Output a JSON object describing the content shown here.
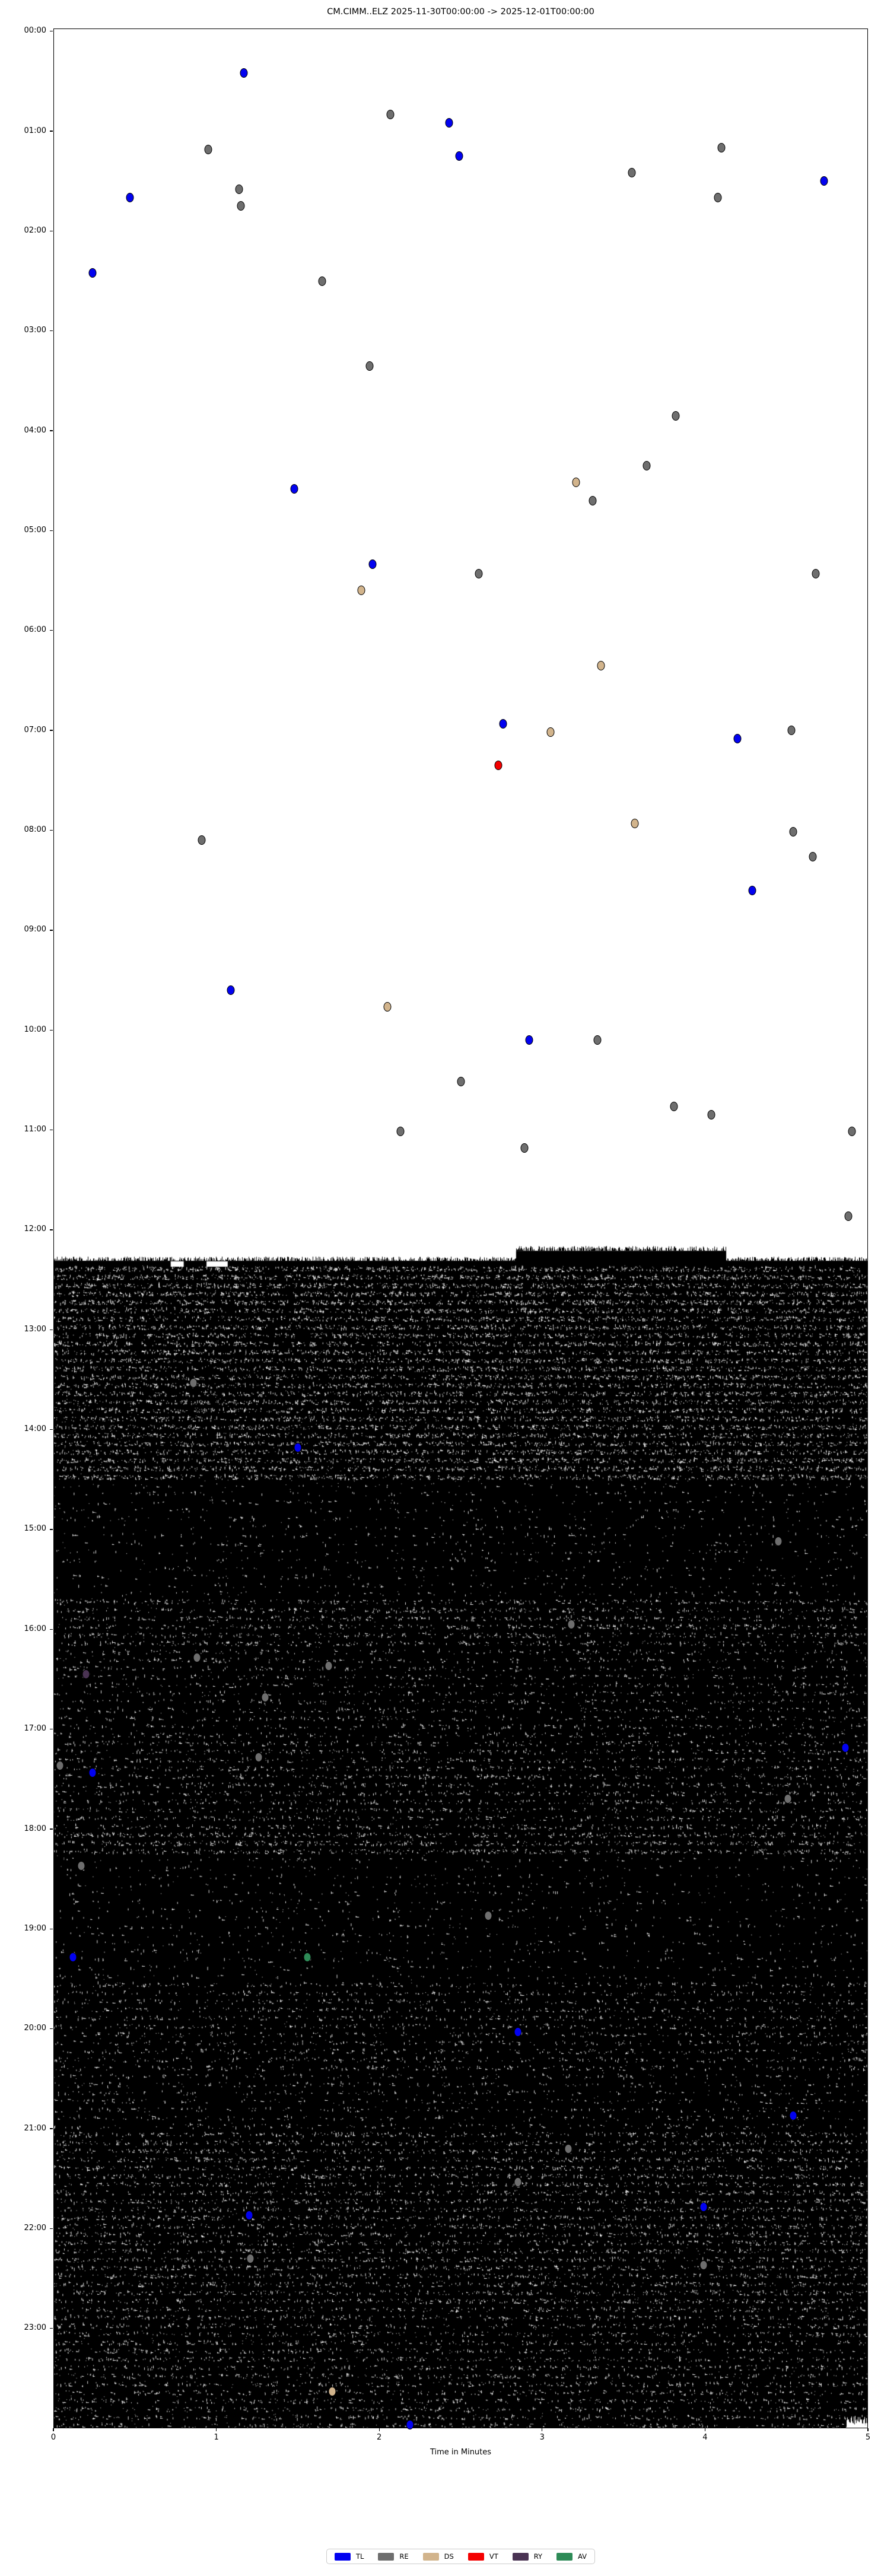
{
  "title": "CM.CIMM..ELZ  2025-11-30T00:00:00 -> 2025-12-01T00:00:00",
  "x_axis": {
    "label": "Time in Minutes",
    "ticks": [
      "0",
      "1",
      "2",
      "3",
      "4",
      "5"
    ],
    "range": [
      0,
      5
    ]
  },
  "y_axis": {
    "ticks": [
      "00:00",
      "01:00",
      "02:00",
      "03:00",
      "04:00",
      "05:00",
      "06:00",
      "07:00",
      "08:00",
      "09:00",
      "10:00",
      "11:00",
      "12:00",
      "13:00",
      "14:00",
      "15:00",
      "16:00",
      "17:00",
      "18:00",
      "19:00",
      "20:00",
      "21:00",
      "22:00",
      "23:00"
    ],
    "range_hours": [
      0,
      24
    ]
  },
  "legend": {
    "items": [
      {
        "label": "TL",
        "color": "#0202f0"
      },
      {
        "label": "RE",
        "color": "#6e6e6e"
      },
      {
        "label": "DS",
        "color": "#d2b48c"
      },
      {
        "label": "VT",
        "color": "#f40000"
      },
      {
        "label": "RY",
        "color": "#4a3353"
      },
      {
        "label": "AV",
        "color": "#2e8b57"
      }
    ]
  },
  "chart_data": {
    "type": "scatter",
    "title": "CM.CIMM..ELZ  2025-11-30T00:00:00 -> 2025-12-01T00:00:00",
    "xlabel": "Time in Minutes",
    "ylabel": "",
    "x_range_minutes": [
      0,
      5
    ],
    "y_range_hours": [
      0,
      24
    ],
    "grid": false,
    "legend_position": "bottom-center",
    "description": "Helicorder-style day plot: event classification markers scattered over 24 hours (rows of 5 minutes). Continuous high-amplitude black waveform fills the plot from about 12:19 to 24:00.",
    "events": [
      [
        "00:25",
        1.17,
        "TL"
      ],
      [
        "00:50",
        2.07,
        "RE"
      ],
      [
        "00:55",
        2.43,
        "TL"
      ],
      [
        "01:11",
        0.95,
        "RE"
      ],
      [
        "01:10",
        4.1,
        "RE"
      ],
      [
        "01:15",
        2.49,
        "TL"
      ],
      [
        "01:25",
        3.55,
        "RE"
      ],
      [
        "01:30",
        4.73,
        "TL"
      ],
      [
        "01:35",
        1.14,
        "RE"
      ],
      [
        "01:40",
        0.47,
        "TL"
      ],
      [
        "01:40",
        4.08,
        "RE"
      ],
      [
        "01:45",
        1.15,
        "RE"
      ],
      [
        "02:25",
        0.24,
        "TL"
      ],
      [
        "02:30",
        1.65,
        "RE"
      ],
      [
        "03:21",
        1.94,
        "RE"
      ],
      [
        "03:51",
        3.82,
        "RE"
      ],
      [
        "04:21",
        3.64,
        "RE"
      ],
      [
        "04:31",
        3.21,
        "DS"
      ],
      [
        "04:35",
        1.48,
        "TL"
      ],
      [
        "04:42",
        3.31,
        "RE"
      ],
      [
        "05:20",
        1.96,
        "TL"
      ],
      [
        "05:26",
        2.61,
        "RE"
      ],
      [
        "05:26",
        4.68,
        "RE"
      ],
      [
        "05:36",
        1.89,
        "DS"
      ],
      [
        "06:21",
        3.36,
        "DS"
      ],
      [
        "06:56",
        2.76,
        "TL"
      ],
      [
        "07:01",
        3.05,
        "DS"
      ],
      [
        "07:00",
        4.53,
        "RE"
      ],
      [
        "07:05",
        4.2,
        "TL"
      ],
      [
        "07:21",
        2.73,
        "VT"
      ],
      [
        "07:56",
        3.57,
        "DS"
      ],
      [
        "08:01",
        4.54,
        "RE"
      ],
      [
        "08:06",
        0.91,
        "RE"
      ],
      [
        "08:16",
        4.66,
        "RE"
      ],
      [
        "08:36",
        4.29,
        "TL"
      ],
      [
        "09:36",
        1.09,
        "TL"
      ],
      [
        "09:46",
        2.05,
        "DS"
      ],
      [
        "10:06",
        2.92,
        "TL"
      ],
      [
        "10:06",
        3.34,
        "RE"
      ],
      [
        "10:31",
        2.5,
        "RE"
      ],
      [
        "10:46",
        3.81,
        "RE"
      ],
      [
        "10:51",
        4.04,
        "RE"
      ],
      [
        "11:01",
        2.13,
        "RE"
      ],
      [
        "11:01",
        4.9,
        "RE"
      ],
      [
        "11:11",
        2.89,
        "RE"
      ],
      [
        "11:52",
        4.88,
        "RE"
      ],
      [
        "13:32",
        0.86,
        "RE"
      ],
      [
        "14:11",
        1.5,
        "TL"
      ],
      [
        "15:07",
        4.45,
        "RE"
      ],
      [
        "15:57",
        3.18,
        "RE"
      ],
      [
        "16:17",
        0.88,
        "RE"
      ],
      [
        "16:22",
        1.69,
        "RE"
      ],
      [
        "16:27",
        0.2,
        "RY"
      ],
      [
        "16:41",
        1.3,
        "RE"
      ],
      [
        "17:11",
        4.86,
        "TL"
      ],
      [
        "17:17",
        1.26,
        "RE"
      ],
      [
        "17:22",
        0.04,
        "RE"
      ],
      [
        "17:26",
        0.24,
        "TL"
      ],
      [
        "17:42",
        4.51,
        "RE"
      ],
      [
        "18:22",
        0.17,
        "RE"
      ],
      [
        "18:52",
        2.67,
        "RE"
      ],
      [
        "19:17",
        0.12,
        "TL"
      ],
      [
        "19:17",
        1.56,
        "AV"
      ],
      [
        "20:02",
        2.85,
        "TL"
      ],
      [
        "20:52",
        4.54,
        "TL"
      ],
      [
        "21:12",
        3.16,
        "RE"
      ],
      [
        "21:32",
        2.85,
        "RE"
      ],
      [
        "21:47",
        3.99,
        "TL"
      ],
      [
        "21:52",
        1.2,
        "TL"
      ],
      [
        "22:18",
        1.21,
        "RE"
      ],
      [
        "22:22",
        3.99,
        "RE"
      ],
      [
        "23:38",
        1.71,
        "DS"
      ],
      [
        "23:58",
        2.19,
        "TL"
      ]
    ],
    "noise": {
      "start_h": 12.31,
      "end_h": 24.0,
      "row_minutes": 5,
      "pre_burst": {
        "h0": 12.21,
        "h1": 12.32,
        "m0": 2.84,
        "m1": 4.13
      },
      "first_row_gaps": [
        {
          "m0": 0.72,
          "m1": 0.8
        },
        {
          "m0": 0.94,
          "m1": 1.07
        }
      ],
      "white_burst": {
        "m0": 4.87,
        "m1": 5.0,
        "h0": 23.85,
        "h1": 24.0
      },
      "density_bands": [
        [
          12.31,
          12.8,
          1.0
        ],
        [
          12.8,
          14.55,
          0.85
        ],
        [
          14.55,
          15.65,
          0.13
        ],
        [
          15.65,
          16.15,
          0.45
        ],
        [
          16.15,
          17.1,
          0.28
        ],
        [
          17.1,
          18.0,
          0.38
        ],
        [
          18.0,
          18.3,
          0.6
        ],
        [
          18.3,
          19.55,
          0.12
        ],
        [
          19.55,
          20.4,
          0.32
        ],
        [
          20.4,
          21.05,
          0.22
        ],
        [
          21.05,
          22.8,
          0.5
        ],
        [
          22.8,
          24.0,
          0.42
        ]
      ]
    }
  }
}
